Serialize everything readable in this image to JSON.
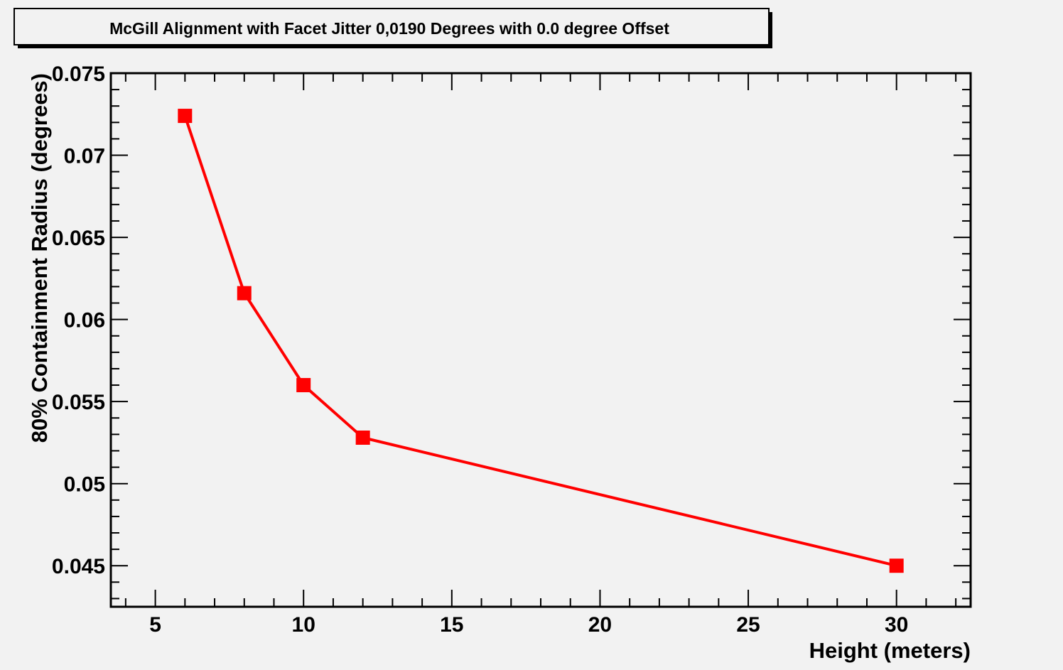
{
  "chart_data": {
    "type": "line",
    "title": "McGill Alignment with Facet Jitter 0,0190 Degrees with 0.0 degree Offset",
    "xlabel": "Height (meters)",
    "ylabel": "80% Containment Radius (degrees)",
    "xlim": [
      3.5,
      32.5
    ],
    "ylim": [
      0.0425,
      0.075
    ],
    "x_ticks": [
      5,
      10,
      15,
      20,
      25,
      30
    ],
    "x_tick_labels": [
      "5",
      "10",
      "15",
      "20",
      "25",
      "30"
    ],
    "y_ticks": [
      0.045,
      0.05,
      0.055,
      0.06,
      0.065,
      0.07,
      0.075
    ],
    "y_tick_labels": [
      "0.045",
      "0.05",
      "0.055",
      "0.06",
      "0.065",
      "0.07",
      "0.075"
    ],
    "grid": false,
    "series": [
      {
        "color": "#ff0000",
        "marker": "square",
        "x": [
          6,
          8,
          10,
          12,
          30
        ],
        "y": [
          0.0724,
          0.0616,
          0.056,
          0.0528,
          0.045
        ]
      }
    ]
  }
}
